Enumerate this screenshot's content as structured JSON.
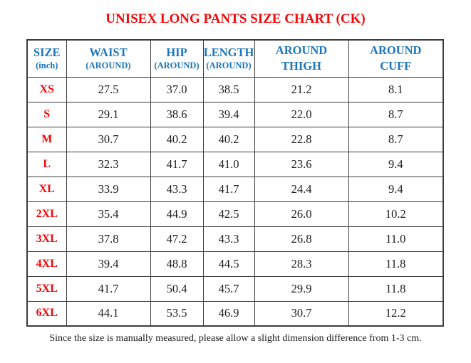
{
  "title": "UNISEX LONG PANTS SIZE CHART (CK)",
  "footer_note": "Since the size is manually measured, please allow a slight dimension difference from 1-3 cm.",
  "colors": {
    "title_red": "#f40708",
    "header_blue": "#1b75bc",
    "size_label_red": "#f40708",
    "value_black": "#1e1e1e",
    "border_gray": "#3c3c3c"
  },
  "chart_data": {
    "type": "table",
    "title": "UNISEX LONG PANTS SIZE CHART (CK)",
    "unit": "inch",
    "columns": [
      {
        "line1": "SIZE",
        "line2": "(inch)"
      },
      {
        "line1": "WAIST",
        "line2": "(AROUND)"
      },
      {
        "line1": "HIP",
        "line2": "(AROUND)"
      },
      {
        "line1": "LENGTH",
        "line2": "(AROUND)"
      },
      {
        "line1": "AROUND",
        "line2": "THIGH"
      },
      {
        "line1": "AROUND",
        "line2": "CUFF"
      }
    ],
    "rows": [
      {
        "size": "XS",
        "values": [
          "27.5",
          "37.0",
          "38.5",
          "21.2",
          "8.1"
        ]
      },
      {
        "size": "S",
        "values": [
          "29.1",
          "38.6",
          "39.4",
          "22.0",
          "8.7"
        ]
      },
      {
        "size": "M",
        "values": [
          "30.7",
          "40.2",
          "40.2",
          "22.8",
          "8.7"
        ]
      },
      {
        "size": "L",
        "values": [
          "32.3",
          "41.7",
          "41.0",
          "23.6",
          "9.4"
        ]
      },
      {
        "size": "XL",
        "values": [
          "33.9",
          "43.3",
          "41.7",
          "24.4",
          "9.4"
        ]
      },
      {
        "size": "2XL",
        "values": [
          "35.4",
          "44.9",
          "42.5",
          "26.0",
          "10.2"
        ]
      },
      {
        "size": "3XL",
        "values": [
          "37.8",
          "47.2",
          "43.3",
          "26.8",
          "11.0"
        ]
      },
      {
        "size": "4XL",
        "values": [
          "39.4",
          "48.8",
          "44.5",
          "28.3",
          "11.8"
        ]
      },
      {
        "size": "5XL",
        "values": [
          "41.7",
          "50.4",
          "45.7",
          "29.9",
          "11.8"
        ]
      },
      {
        "size": "6XL",
        "values": [
          "44.1",
          "53.5",
          "46.9",
          "30.7",
          "12.2"
        ]
      }
    ]
  }
}
